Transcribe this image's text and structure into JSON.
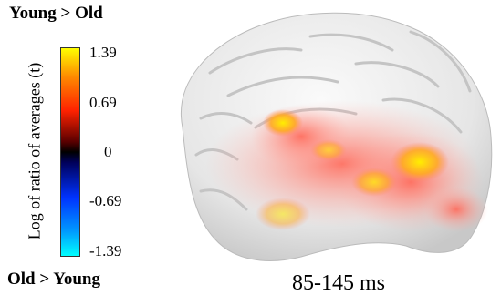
{
  "legend": {
    "top_label": "Young > Old",
    "bottom_label": "Old > Young",
    "axis_label": "Log of ratio of averages (t)",
    "ticks": [
      "1.39",
      "0.69",
      "0",
      "-0.69",
      "-1.39"
    ]
  },
  "time_window": "85-145 ms",
  "colors": {
    "positive_high": "#ffff00",
    "positive_mid": "#ff2200",
    "zero": "#000000",
    "negative_mid": "#0033ff",
    "negative_high": "#00ffff",
    "cortex": "#f0f0f0"
  }
}
